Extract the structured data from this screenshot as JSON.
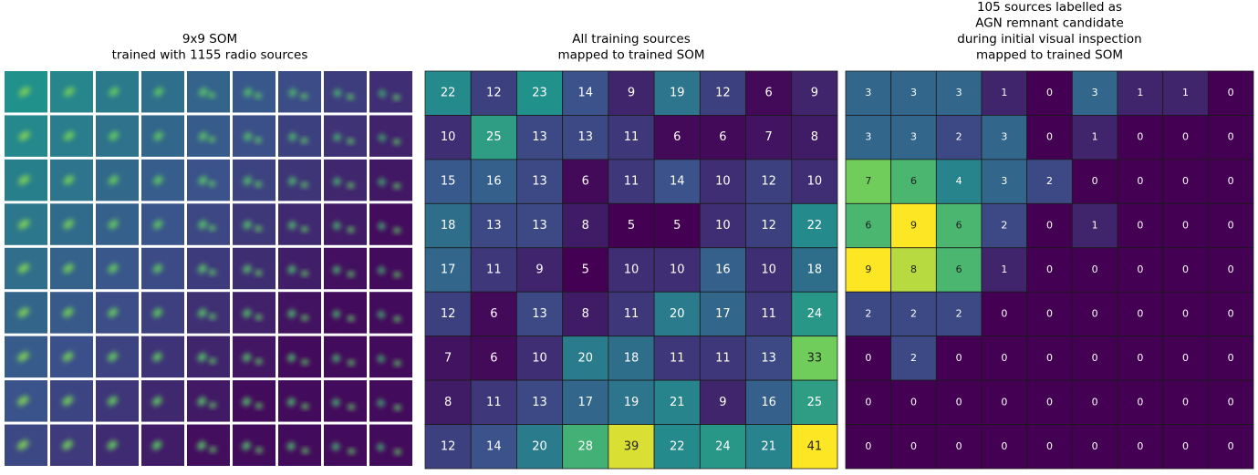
{
  "chart_data": [
    {
      "type": "image-grid",
      "title": [
        "9x9 SOM",
        "trained with 1155 radio sources"
      ]
    },
    {
      "type": "heatmap",
      "title": [
        "All training sources",
        "mapped to trained SOM"
      ],
      "colormap": "viridis",
      "values": [
        [
          22,
          12,
          23,
          14,
          9,
          19,
          12,
          6,
          9
        ],
        [
          10,
          25,
          13,
          13,
          11,
          6,
          6,
          7,
          8
        ],
        [
          15,
          16,
          13,
          6,
          11,
          14,
          10,
          12,
          10
        ],
        [
          18,
          13,
          13,
          8,
          5,
          5,
          10,
          12,
          22
        ],
        [
          17,
          11,
          9,
          5,
          10,
          10,
          16,
          10,
          18
        ],
        [
          12,
          6,
          13,
          8,
          11,
          20,
          17,
          11,
          24
        ],
        [
          7,
          6,
          10,
          20,
          18,
          11,
          11,
          13,
          33
        ],
        [
          8,
          11,
          13,
          17,
          19,
          21,
          9,
          16,
          25
        ],
        [
          12,
          14,
          20,
          28,
          39,
          22,
          24,
          21,
          41
        ]
      ]
    },
    {
      "type": "heatmap",
      "title": [
        "105 sources labelled as",
        "AGN remnant candidate",
        "during initial visual inspection",
        "mapped to trained SOM"
      ],
      "colormap": "viridis",
      "values": [
        [
          3,
          3,
          3,
          1,
          0,
          3,
          1,
          1,
          0
        ],
        [
          3,
          3,
          2,
          3,
          0,
          1,
          0,
          0,
          0
        ],
        [
          7,
          6,
          4,
          3,
          2,
          0,
          0,
          0,
          0
        ],
        [
          6,
          9,
          6,
          2,
          0,
          1,
          0,
          0,
          0
        ],
        [
          9,
          8,
          6,
          1,
          0,
          0,
          0,
          0,
          0
        ],
        [
          2,
          2,
          2,
          0,
          0,
          0,
          0,
          0,
          0
        ],
        [
          0,
          2,
          0,
          0,
          0,
          0,
          0,
          0,
          0
        ],
        [
          0,
          0,
          0,
          0,
          0,
          0,
          0,
          0,
          0
        ],
        [
          0,
          0,
          0,
          0,
          0,
          0,
          0,
          0,
          0
        ]
      ]
    }
  ]
}
